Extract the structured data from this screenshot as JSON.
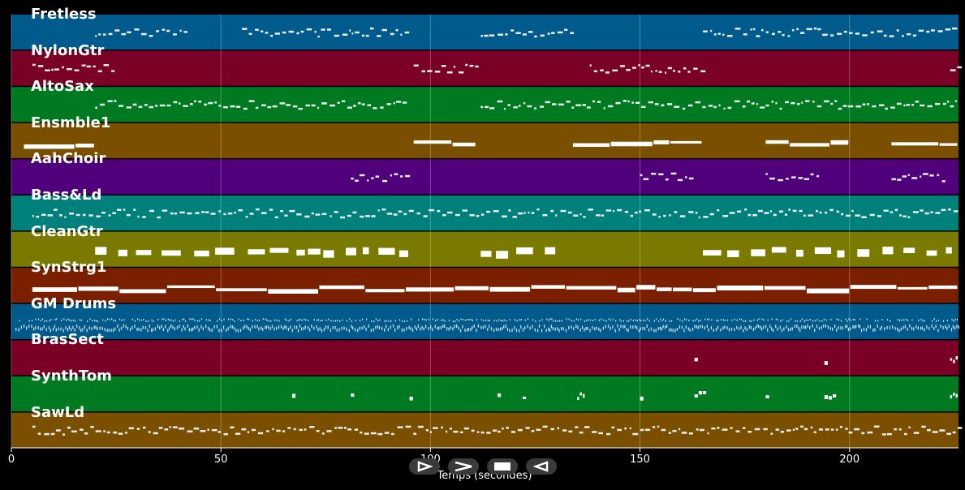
{
  "chart_data": {
    "type": "piano-roll",
    "xlabel": "Temps (secondes)",
    "xlim": [
      0,
      226
    ],
    "xticks": [
      0,
      50,
      100,
      150,
      200
    ],
    "grid": true,
    "tracks": [
      {
        "name": "Fretless",
        "color": "#005a8c",
        "pattern": "sparse",
        "segments": [
          [
            20,
            42
          ],
          [
            55,
            95
          ],
          [
            112,
            134
          ],
          [
            165,
            226
          ]
        ]
      },
      {
        "name": "NylonGtr",
        "color": "#7a0026",
        "pattern": "sparse",
        "segments": [
          [
            5,
            24
          ],
          [
            96,
            111
          ],
          [
            138,
            165
          ],
          [
            224,
            226
          ]
        ]
      },
      {
        "name": "AltoSax",
        "color": "#007a20",
        "pattern": "sparse",
        "segments": [
          [
            20,
            94
          ],
          [
            112,
            226
          ]
        ]
      },
      {
        "name": "Ensmble1",
        "color": "#7a5000",
        "pattern": "long",
        "segments": [
          [
            3,
            20
          ],
          [
            96,
            111
          ],
          [
            134,
            165
          ],
          [
            180,
            200
          ],
          [
            210,
            226
          ]
        ]
      },
      {
        "name": "AahChoir",
        "color": "#50007a",
        "pattern": "sparse",
        "segments": [
          [
            81,
            94
          ],
          [
            150,
            163
          ],
          [
            180,
            193
          ],
          [
            210,
            223
          ]
        ]
      },
      {
        "name": "Bass&Ld",
        "color": "#00807a",
        "pattern": "sparse",
        "segments": [
          [
            5,
            226
          ]
        ]
      },
      {
        "name": "CleanGtr",
        "color": "#7a7a00",
        "pattern": "blocks",
        "segments": [
          [
            20,
            95
          ],
          [
            112,
            134
          ],
          [
            165,
            226
          ]
        ]
      },
      {
        "name": "SynStrg1",
        "color": "#7a2000",
        "pattern": "long",
        "segments": [
          [
            5,
            226
          ]
        ]
      },
      {
        "name": "GM Drums",
        "color": "#005a8c",
        "pattern": "dense",
        "segments": [
          [
            1,
            226
          ]
        ]
      },
      {
        "name": "BrasSect",
        "color": "#7a0026",
        "pattern": "hits",
        "segments": [
          [
            163,
            164
          ],
          [
            194,
            195
          ],
          [
            224,
            226
          ]
        ]
      },
      {
        "name": "SynthTom",
        "color": "#007a20",
        "pattern": "hits",
        "segments": [
          [
            67,
            68
          ],
          [
            81,
            82
          ],
          [
            95,
            96
          ],
          [
            116,
            117
          ],
          [
            122,
            123
          ],
          [
            135,
            137
          ],
          [
            150,
            151
          ],
          [
            163,
            166
          ],
          [
            180,
            181
          ],
          [
            194,
            197
          ],
          [
            224,
            226
          ]
        ]
      },
      {
        "name": "SawLd",
        "color": "#7a5000",
        "pattern": "sparse",
        "segments": [
          [
            5,
            226
          ]
        ]
      }
    ]
  },
  "controls": [
    {
      "name": "play",
      "icon": "play-outline-icon"
    },
    {
      "name": "forward",
      "icon": "chevron-right-icon"
    },
    {
      "name": "stop",
      "icon": "stop-icon"
    },
    {
      "name": "rewind",
      "icon": "rewind-outline-icon"
    }
  ]
}
